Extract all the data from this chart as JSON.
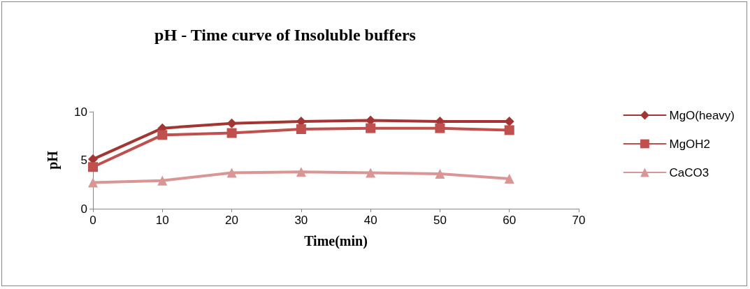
{
  "chart_data": {
    "type": "line",
    "title": "pH - Time curve of Insoluble buffers",
    "xlabel": "Time(min)",
    "ylabel": "pH",
    "x": [
      0,
      10,
      20,
      30,
      40,
      50,
      60
    ],
    "series": [
      {
        "name": "MgO(heavy)",
        "color": "#a33633",
        "marker": "diamond",
        "values": [
          5.1,
          8.3,
          8.8,
          9.0,
          9.1,
          9.0,
          9.0
        ]
      },
      {
        "name": "MgOH2",
        "color": "#c0504d",
        "marker": "square",
        "values": [
          4.3,
          7.6,
          7.8,
          8.2,
          8.3,
          8.3,
          8.1
        ]
      },
      {
        "name": "CaCO3",
        "color": "#d99694",
        "marker": "triangle",
        "values": [
          2.7,
          2.9,
          3.7,
          3.8,
          3.7,
          3.6,
          3.1
        ]
      }
    ],
    "xlim": [
      0,
      70
    ],
    "xticks": [
      0,
      10,
      20,
      30,
      40,
      50,
      60,
      70
    ],
    "ylim": [
      0,
      10
    ],
    "yticks": [
      0,
      5,
      10
    ],
    "grid": false,
    "legend": "right",
    "line_style": "solid"
  }
}
